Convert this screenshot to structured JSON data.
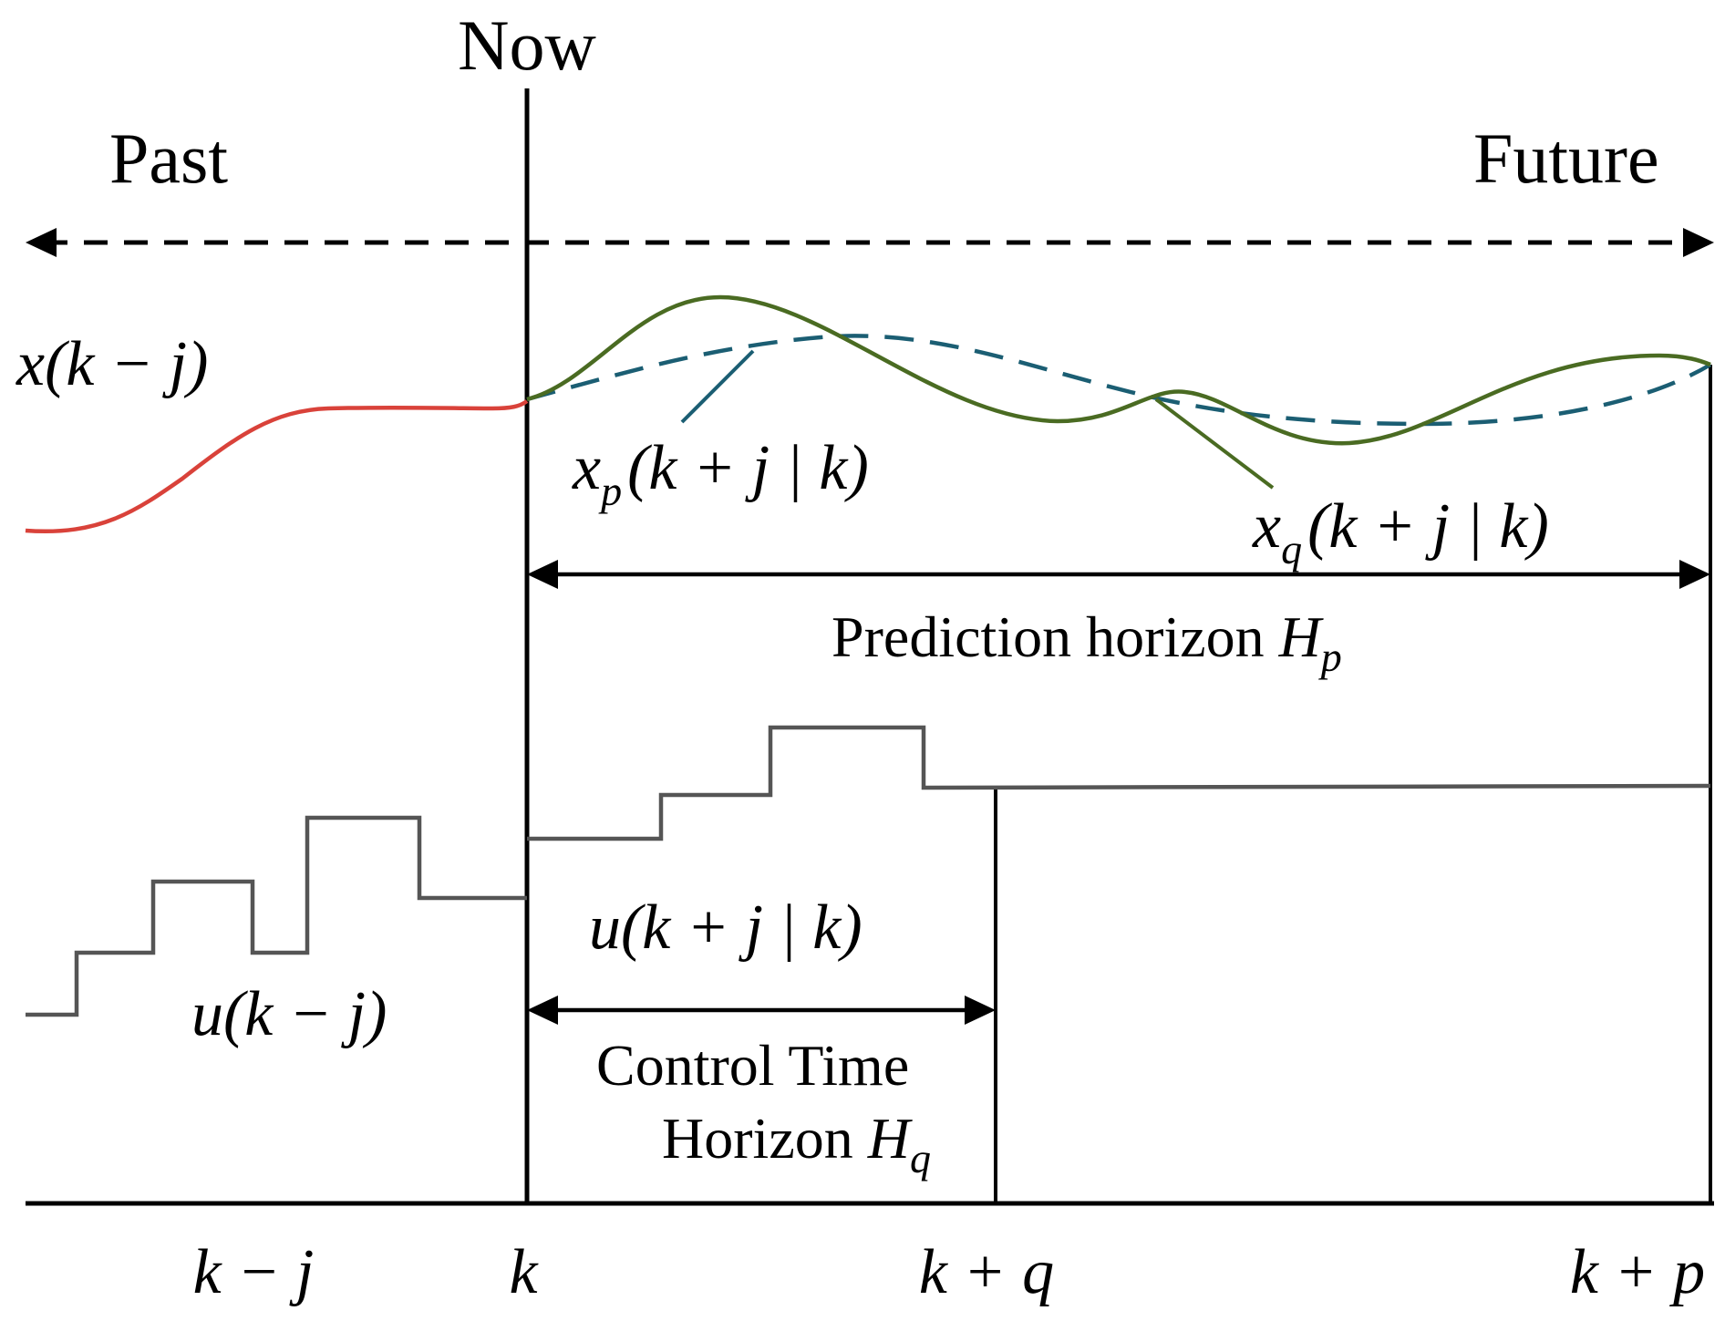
{
  "labels": {
    "now": "Now",
    "past": "Past",
    "future": "Future",
    "x_past": "x(k − j)",
    "u_past": "u(k − j)",
    "u_future": "u(k + j | k)",
    "prediction_horizon_text": "Prediction horizon ",
    "prediction_horizon_symbol": "H",
    "prediction_horizon_sub": "p",
    "control_horizon_line1": "Control Time",
    "control_horizon_line2_text": "Horizon ",
    "control_horizon_symbol": "H",
    "control_horizon_sub": "q",
    "xp_symbol": "x",
    "xp_sub": "p",
    "xp_args": "(k + j | k)",
    "xq_symbol": "x",
    "xq_sub": "q",
    "xq_args": "(k + j | k)"
  },
  "axis_ticks": [
    "k − j",
    "k",
    "k + q",
    "k + p"
  ],
  "colors": {
    "past_state": "#d9423a",
    "predicted_state": "#4a6b22",
    "reference_state": "#1b5e73",
    "control_signal": "#555555",
    "axis": "#000000"
  }
}
